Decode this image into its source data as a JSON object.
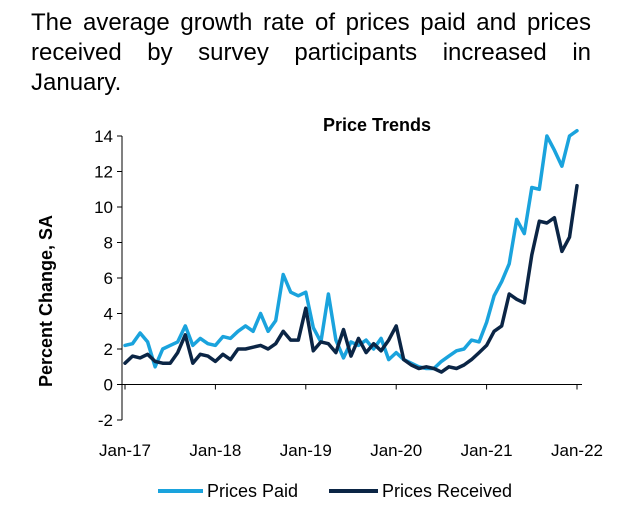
{
  "headline": "The average growth rate of prices paid and prices received by survey participants increased in January.",
  "chart_data": {
    "type": "line",
    "title": "Price Trends",
    "ylabel": "Percent Change, SA",
    "xlabel": "",
    "ylim": [
      -2,
      14
    ],
    "yticks": [
      -2,
      0,
      2,
      4,
      6,
      8,
      10,
      12,
      14
    ],
    "x_tick_labels": [
      "Jan-17",
      "Jan-18",
      "Jan-19",
      "Jan-20",
      "Jan-21",
      "Jan-22"
    ],
    "x_start": "Jan-17",
    "x_end": "Jan-22",
    "grid": false,
    "legend_position": "bottom",
    "series": [
      {
        "name": "Prices Paid",
        "color": "#1aa3dd",
        "values": [
          2.2,
          2.3,
          2.9,
          2.4,
          1.0,
          2.0,
          2.2,
          2.4,
          3.3,
          2.2,
          2.6,
          2.3,
          2.2,
          2.7,
          2.6,
          3.0,
          3.3,
          3.0,
          4.0,
          3.0,
          3.6,
          6.2,
          5.2,
          5.0,
          5.2,
          3.2,
          2.4,
          5.1,
          2.5,
          1.5,
          2.4,
          2.2,
          2.5,
          2.0,
          2.6,
          1.4,
          1.8,
          1.4,
          1.2,
          1.0,
          0.9,
          0.9,
          1.3,
          1.6,
          1.9,
          2.0,
          2.5,
          2.4,
          3.5,
          5.0,
          5.8,
          6.8,
          9.3,
          8.5,
          11.1,
          11.0,
          14.0,
          13.2,
          12.3,
          14.0,
          14.3
        ]
      },
      {
        "name": "Prices Received",
        "color": "#0b2545",
        "values": [
          1.2,
          1.6,
          1.5,
          1.7,
          1.3,
          1.2,
          1.2,
          1.8,
          2.8,
          1.2,
          1.7,
          1.6,
          1.3,
          1.7,
          1.4,
          2.0,
          2.0,
          2.1,
          2.2,
          2.0,
          2.3,
          3.0,
          2.5,
          2.5,
          4.3,
          1.9,
          2.4,
          2.3,
          1.8,
          3.1,
          1.6,
          2.6,
          1.8,
          2.3,
          1.9,
          2.5,
          3.3,
          1.4,
          1.1,
          0.9,
          1.0,
          0.9,
          0.7,
          1.0,
          0.9,
          1.1,
          1.4,
          1.8,
          2.2,
          3.0,
          3.3,
          5.1,
          4.8,
          4.6,
          7.3,
          9.2,
          9.1,
          9.4,
          7.5,
          8.3,
          11.2
        ]
      }
    ]
  }
}
